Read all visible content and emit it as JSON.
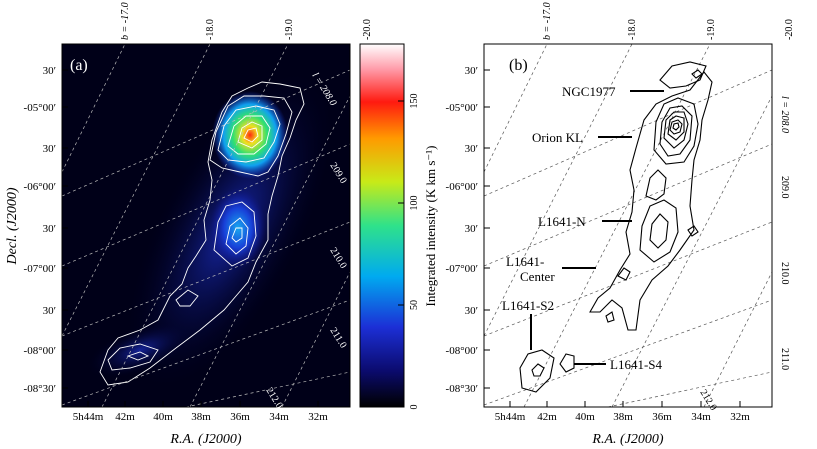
{
  "figure": {
    "panel_a": {
      "label": "(a)",
      "dec_ticks": [
        "30′",
        "-05°00′",
        "30′",
        "-06°00′",
        "30′",
        "-07°00′",
        "30′",
        "-08°00′",
        "-08°30′"
      ],
      "ra_ticks": [
        "5h44m",
        "42m",
        "40m",
        "38m",
        "36m",
        "34m",
        "32m"
      ],
      "b_ticks": [
        "b = -17.0",
        "-18.0",
        "-19.0",
        "-20.0"
      ],
      "l_ticks": [
        "l = 208.0",
        "209.0",
        "210.0",
        "211.0",
        "212.0"
      ],
      "ylabel": "Decl. (J2000)",
      "xlabel": "R.A. (J2000)",
      "colorbar": {
        "label": "Integrated intensity (K km s⁻¹)",
        "ticks": [
          "0",
          "50",
          "100",
          "150"
        ]
      }
    },
    "panel_b": {
      "label": "(b)",
      "dec_ticks": [
        "30′",
        "-05°00′",
        "30′",
        "-06°00′",
        "30′",
        "-07°00′",
        "30′",
        "-08°00′",
        "-08°30′"
      ],
      "ra_ticks": [
        "5h44m",
        "42m",
        "40m",
        "38m",
        "36m",
        "34m",
        "32m"
      ],
      "b_ticks": [
        "b = -17.0",
        "-18.0",
        "-19.0",
        "-20.0"
      ],
      "l_ticks": [
        "l = 208.0",
        "209.0",
        "210.0",
        "211.0",
        "212.0"
      ],
      "xlabel": "R.A. (J2000)",
      "annotations": [
        "NGC1977",
        "Orion KL",
        "L1641-N",
        "L1641-",
        "Center",
        "L1641-S2",
        "L1641-S4"
      ]
    }
  },
  "colors": {
    "map_background": "#000018",
    "contour_a": "#ffffff",
    "contour_b": "#000000",
    "colormap": [
      "#000000",
      "#0b0b6e",
      "#1c2fd6",
      "#00aaf0",
      "#2fe28a",
      "#c8ea18",
      "#ff9a00",
      "#ff1a10",
      "#ff9aa8",
      "#ffffff"
    ]
  }
}
